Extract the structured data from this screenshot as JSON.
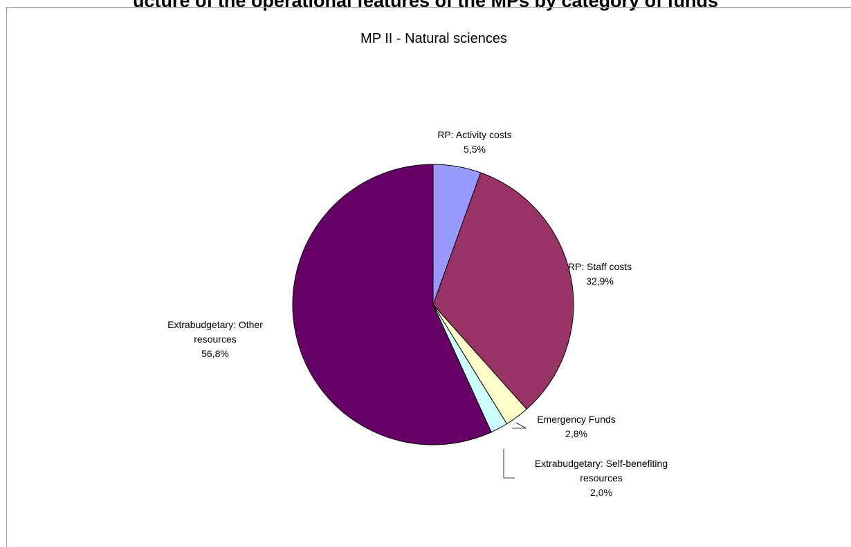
{
  "page": {
    "heading": "ucture of the operational features of the MPs by category of funds"
  },
  "chart_data": {
    "type": "pie",
    "title": "MP II - Natural sciences",
    "slices": [
      {
        "name": "RP: Activity costs",
        "label_lines": [
          "RP: Activity costs"
        ],
        "value": 5.5,
        "value_label": "5,5%",
        "color": "#9999ff"
      },
      {
        "name": "RP: Staff costs",
        "label_lines": [
          "RP: Staff costs"
        ],
        "value": 32.9,
        "value_label": "32,9%",
        "color": "#993366"
      },
      {
        "name": "Emergency Funds",
        "label_lines": [
          "Emergency Funds"
        ],
        "value": 2.8,
        "value_label": "2,8%",
        "color": "#ffffcc"
      },
      {
        "name": "Extrabudgetary: Self-benefiting resources",
        "label_lines": [
          "Extrabudgetary: Self-benefiting",
          "resources"
        ],
        "value": 2.0,
        "value_label": "2,0%",
        "color": "#ccffff"
      },
      {
        "name": "Extrabudgetary: Other resources",
        "label_lines": [
          "Extrabudgetary: Other",
          "resources"
        ],
        "value": 56.8,
        "value_label": "56,8%",
        "color": "#660066"
      }
    ],
    "legend": "none",
    "start_angle": "12 o'clock",
    "direction": "clockwise"
  }
}
